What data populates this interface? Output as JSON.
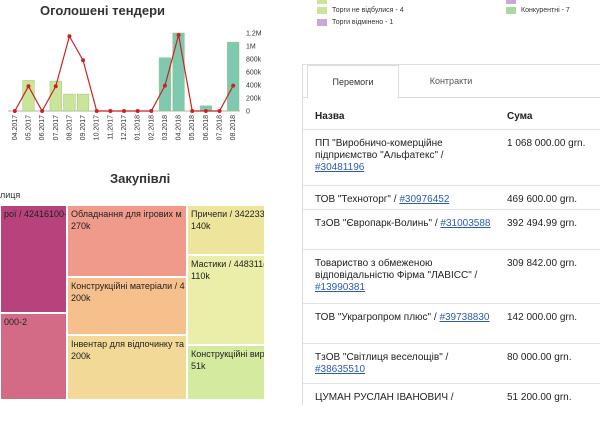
{
  "tenders": {
    "title": "Оголошені тендери",
    "chart_data": {
      "type": "bar",
      "categories": [
        "04.2017",
        "05.2017",
        "06.2017",
        "07.2017",
        "08.2017",
        "09.2017",
        "10.2017",
        "11.2017",
        "12.2017",
        "01.2018",
        "02.2018",
        "03.2018",
        "04.2018",
        "05.2018",
        "06.2018",
        "07.2018",
        "08.2018"
      ],
      "series": [
        {
          "kind": "bar",
          "values": [
            0,
            470000,
            0,
            460000,
            260000,
            260000,
            0,
            0,
            0,
            0,
            0,
            820000,
            1200000,
            0,
            80000,
            0,
            1060000
          ]
        },
        {
          "kind": "line",
          "values": [
            0,
            380000,
            0,
            380000,
            1150000,
            780000,
            0,
            0,
            0,
            0,
            0,
            390000,
            1170000,
            0,
            0,
            0,
            390000
          ]
        }
      ],
      "yticks": [
        "0",
        "200k",
        "400k",
        "600k",
        "800k",
        "1M",
        "1.2M"
      ],
      "ylim": [
        0,
        1200000
      ],
      "bar_colors": [
        "#c8e59a",
        "#7fc9b0"
      ],
      "line_color": "#cc2222"
    }
  },
  "legend": {
    "items": [
      {
        "label": "",
        "color": "#c8e59a"
      },
      {
        "label": "Торги не відбулися - 4",
        "color": "#c8e59a"
      },
      {
        "label": "Торги відмінено - 1",
        "color": "#c9a8d8"
      },
      {
        "label": "",
        "color": "#c9a8d8"
      },
      {
        "label": "Конкурентні - 7",
        "color": "#a8d8a0"
      }
    ]
  },
  "purchases": {
    "title": "Закупівлі",
    "treemap_header": "лиця",
    "cells": [
      {
        "label": "рої / 42416100-",
        "value": "",
        "color": "#b8427c"
      },
      {
        "label": "000-2",
        "value": "",
        "color": "#d36b86"
      },
      {
        "label": "Обладнання для ігрових м",
        "value": "270k",
        "color": "#ef9a8a"
      },
      {
        "label": "Конструкційні матеріали / 4",
        "value": "200k",
        "color": "#f6c08c"
      },
      {
        "label": "Інвентар для відпочинку та",
        "value": "200k",
        "color": "#f3d998"
      },
      {
        "label": "Причепи / 342233",
        "value": "140k",
        "color": "#ede59c"
      },
      {
        "label": "Мастики / 448311(",
        "value": "110k",
        "color": "#eaeea8"
      },
      {
        "label": "Конструкційні вир",
        "value": "51k",
        "color": "#d4ea9e"
      }
    ]
  },
  "tabs": [
    "Перемоги",
    "Контракти"
  ],
  "table": {
    "headers": [
      "Назва",
      "Сума"
    ],
    "rows": [
      {
        "name": "ПП \"Виробничо-комерційне підприємство \"Альфатекс\" /",
        "link": "#30481196",
        "sum": "1 068 000.00 grn."
      },
      {
        "name": "ТОВ \"Техноторг\" /",
        "link": "#30976452",
        "sum": "469 600.00 grn."
      },
      {
        "name": "ТзОВ \"Європарк-Волинь\" /",
        "link": "#31003588",
        "sum": "392 494.99 grn."
      },
      {
        "name": "Товариство з обмеженою відповідальністю Фірма \"ЛАВІСС\" /",
        "link": "#13990381",
        "sum": "309 842.00 grn."
      },
      {
        "name": "ТОВ \"Украгропром плюс\" /",
        "link": "#39738830",
        "sum": "142 000.00 grn."
      },
      {
        "name": "ТзОВ \"Світлиця веселощів\" /",
        "link": "#38635510",
        "sum": "80 000.00 grn."
      },
      {
        "name": "ЦУМАН РУСЛАН ІВАНОВИЧ /",
        "link": "",
        "sum": "51 200.00 grn."
      }
    ]
  }
}
